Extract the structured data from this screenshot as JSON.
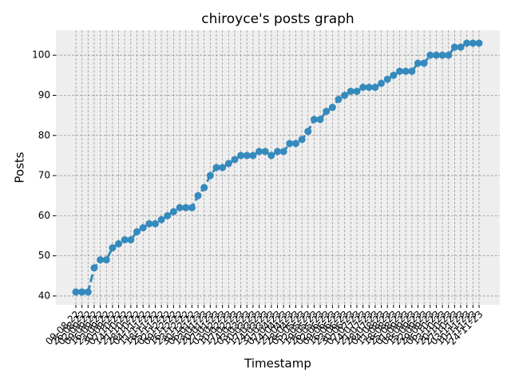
{
  "chart_data": {
    "type": "line",
    "title": "chiroyce's posts graph",
    "x_label": "Timestamp",
    "y_label": "Posts",
    "categories": [
      "09-08-22",
      "26-08-22",
      "02-09-22",
      "09-09-22",
      "16-09-22",
      "23-09-22",
      "30-09-22",
      "07-10-22",
      "14-10-22",
      "21-10-22",
      "28-10-22",
      "04-11-22",
      "11-11-22",
      "18-11-22",
      "25-11-22",
      "02-12-22",
      "09-12-22",
      "16-12-22",
      "23-12-22",
      "30-12-22",
      "06-01-23",
      "13-01-23",
      "20-01-23",
      "27-01-23",
      "03-02-23",
      "10-02-23",
      "17-02-23",
      "24-02-23",
      "03-03-23",
      "10-03-23",
      "17-03-23",
      "24-03-23",
      "31-03-23",
      "07-04-23",
      "14-04-23",
      "21-04-23",
      "28-04-23",
      "05-05-23",
      "12-05-23",
      "19-05-23",
      "26-05-23",
      "02-06-23",
      "09-06-23",
      "16-06-23",
      "23-06-23",
      "30-06-23",
      "07-07-23",
      "14-07-23",
      "21-07-23",
      "28-07-23",
      "04-08-23",
      "11-08-23",
      "18-08-23",
      "25-08-23",
      "01-09-23",
      "08-09-23",
      "15-09-23",
      "22-09-23",
      "29-09-23",
      "06-10-23",
      "13-10-23",
      "20-10-23",
      "27-10-23",
      "03-11-23",
      "10-11-23",
      "17-11-23",
      "24-11-23"
    ],
    "series": [
      {
        "name": "Posts",
        "color": "#348abd",
        "values": [
          41,
          41,
          41,
          47,
          49,
          49,
          52,
          53,
          54,
          54,
          56,
          57,
          58,
          58,
          59,
          60,
          61,
          62,
          62,
          62,
          65,
          67,
          70,
          72,
          72,
          73,
          74,
          75,
          75,
          75,
          76,
          76,
          75,
          76,
          76,
          78,
          78,
          79,
          81,
          84,
          84,
          86,
          87,
          89,
          90,
          91,
          91,
          92,
          92,
          92,
          93,
          94,
          95,
          96,
          96,
          96,
          98,
          98,
          100,
          100,
          100,
          100,
          102,
          102,
          103,
          103,
          103
        ]
      }
    ],
    "ylim": [
      37.8,
      106.2
    ],
    "yticks": [
      40,
      50,
      60,
      70,
      80,
      90,
      100
    ],
    "grid": true
  }
}
